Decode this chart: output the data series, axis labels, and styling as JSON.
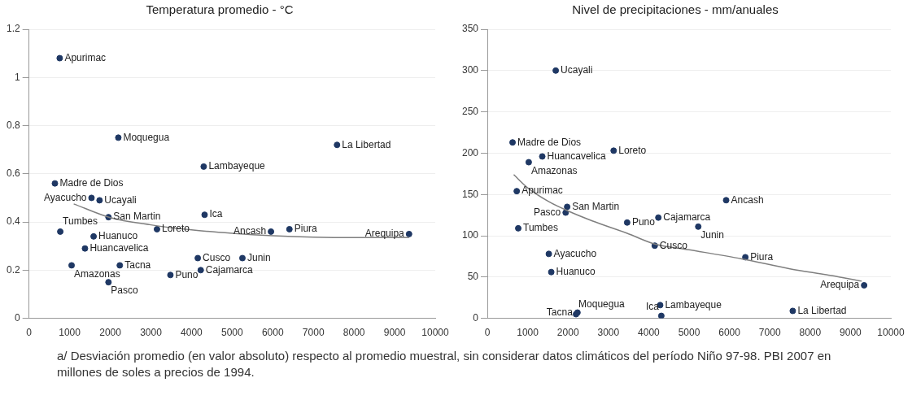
{
  "chart_data": [
    {
      "type": "scatter",
      "title": "Temperatura promedio - °C",
      "xlim": [
        0,
        10000
      ],
      "xticks": [
        0,
        1000,
        2000,
        3000,
        4000,
        5000,
        6000,
        7000,
        8000,
        9000,
        10000
      ],
      "ylim": [
        0,
        1.2
      ],
      "yticks": [
        0,
        0.2,
        0.4,
        0.6,
        0.8,
        1,
        1.2
      ],
      "grid": "y",
      "legend": false,
      "series": [
        {
          "marker": "circle",
          "color": "#1f3864",
          "x": [
            755,
            2198,
            7582,
            4300,
            637,
            1538,
            1736,
            1956,
            4322,
            5956,
            6410,
            9355,
            3150,
            769,
            1590,
            1377,
            4154,
            5253,
            1048,
            2234,
            4227,
            3480,
            1956
          ],
          "values": [
            1.08,
            0.75,
            0.72,
            0.63,
            0.56,
            0.5,
            0.49,
            0.42,
            0.43,
            0.36,
            0.37,
            0.35,
            0.37,
            0.36,
            0.34,
            0.29,
            0.25,
            0.25,
            0.22,
            0.22,
            0.2,
            0.18,
            0.15
          ]
        },
        {
          "type": "line",
          "marker": "none",
          "line_style": "solid",
          "color": "#7f7f7f",
          "x": [
            1100,
            2000,
            3000,
            4000,
            5000,
            6000,
            7000,
            8000,
            9355
          ],
          "values": [
            0.475,
            0.418,
            0.388,
            0.367,
            0.353,
            0.343,
            0.337,
            0.335,
            0.335
          ]
        }
      ],
      "annotations": [
        {
          "text": "Apurimac",
          "x": 755,
          "y": 1.08
        },
        {
          "text": "Moquegua",
          "x": 2198,
          "y": 0.75
        },
        {
          "text": "La Libertad",
          "x": 7582,
          "y": 0.72
        },
        {
          "text": "Lambayeque",
          "x": 4300,
          "y": 0.63
        },
        {
          "text": "Madre de Dios",
          "x": 637,
          "y": 0.56
        },
        {
          "text": "Ayacucho",
          "x": 1538,
          "y": 0.5
        },
        {
          "text": "Ucayali",
          "x": 1736,
          "y": 0.49
        },
        {
          "text": "San Martin",
          "x": 1956,
          "y": 0.42
        },
        {
          "text": "Ica",
          "x": 4322,
          "y": 0.43
        },
        {
          "text": "Ancash",
          "x": 5956,
          "y": 0.36
        },
        {
          "text": "Piura",
          "x": 6410,
          "y": 0.37
        },
        {
          "text": "Arequipa",
          "x": 9355,
          "y": 0.35
        },
        {
          "text": "Loreto",
          "x": 3150,
          "y": 0.37
        },
        {
          "text": "Tumbes",
          "x": 769,
          "y": 0.36
        },
        {
          "text": "Huanuco",
          "x": 1590,
          "y": 0.34
        },
        {
          "text": "Huancavelica",
          "x": 1377,
          "y": 0.29
        },
        {
          "text": "Cusco",
          "x": 4154,
          "y": 0.25
        },
        {
          "text": "Junin",
          "x": 5253,
          "y": 0.25
        },
        {
          "text": "Amazonas",
          "x": 1048,
          "y": 0.22
        },
        {
          "text": "Tacna",
          "x": 2234,
          "y": 0.22
        },
        {
          "text": "Cajamarca",
          "x": 4227,
          "y": 0.2
        },
        {
          "text": "Puno",
          "x": 3480,
          "y": 0.18
        },
        {
          "text": "Pasco",
          "x": 1956,
          "y": 0.15
        }
      ]
    },
    {
      "type": "scatter",
      "title": "Nivel de precipitaciones - mm/anuales",
      "xlim": [
        0,
        10000
      ],
      "xticks": [
        0,
        1000,
        2000,
        3000,
        4000,
        5000,
        6000,
        7000,
        8000,
        9000,
        10000
      ],
      "ylim": [
        0,
        350
      ],
      "yticks": [
        0,
        50,
        100,
        150,
        200,
        250,
        300,
        350
      ],
      "grid": "y",
      "legend": false,
      "series": [
        {
          "marker": "circle",
          "color": "#1f3864",
          "x": [
            1695,
            625,
            3130,
            1361,
            1026,
            729,
            1978,
            1941,
            766,
            3465,
            4238,
            5918,
            5227,
            4149,
            1524,
            1584,
            6394,
            9338,
            4283,
            4312,
            2198,
            2234,
            7569
          ],
          "values": [
            300,
            213,
            203,
            196,
            189,
            154,
            135,
            128,
            109,
            116,
            122,
            143,
            111,
            88,
            78,
            56,
            74,
            40,
            16,
            3,
            5,
            7,
            9
          ]
        },
        {
          "type": "line",
          "marker": "none",
          "line_style": "solid",
          "color": "#7f7f7f",
          "x": [
            654,
            1000,
            1500,
            2000,
            2600,
            3465,
            4149,
            5000,
            6305,
            7500,
            8500,
            9279
          ],
          "values": [
            174,
            158,
            142,
            130,
            118,
            103,
            90,
            83,
            72,
            60,
            52,
            45
          ]
        }
      ],
      "annotations": [
        {
          "text": "Ucayali",
          "x": 1695,
          "y": 300
        },
        {
          "text": "Madre de Dios",
          "x": 625,
          "y": 213
        },
        {
          "text": "Loreto",
          "x": 3130,
          "y": 203
        },
        {
          "text": "Huancavelica",
          "x": 1361,
          "y": 196
        },
        {
          "text": "Amazonas",
          "x": 1026,
          "y": 189
        },
        {
          "text": "Apurimac",
          "x": 729,
          "y": 154
        },
        {
          "text": "San Martin",
          "x": 1978,
          "y": 135
        },
        {
          "text": "Pasco",
          "x": 1941,
          "y": 128
        },
        {
          "text": "Tumbes",
          "x": 766,
          "y": 109
        },
        {
          "text": "Puno",
          "x": 3465,
          "y": 116
        },
        {
          "text": "Cajamarca",
          "x": 4238,
          "y": 122
        },
        {
          "text": "Ancash",
          "x": 5918,
          "y": 143
        },
        {
          "text": "Junin",
          "x": 5227,
          "y": 111
        },
        {
          "text": "Cusco",
          "x": 4149,
          "y": 88
        },
        {
          "text": "Ayacucho",
          "x": 1524,
          "y": 78
        },
        {
          "text": "Huanuco",
          "x": 1584,
          "y": 56
        },
        {
          "text": "Piura",
          "x": 6394,
          "y": 74
        },
        {
          "text": "Arequipa",
          "x": 9338,
          "y": 40
        },
        {
          "text": "Lambayeque",
          "x": 4283,
          "y": 16
        },
        {
          "text": "Ica",
          "x": 4312,
          "y": 3
        },
        {
          "text": "Moquegua",
          "x": 2198,
          "y": 5
        },
        {
          "text": "Tacna",
          "x": 2234,
          "y": 7
        },
        {
          "text": "La Libertad",
          "x": 7569,
          "y": 9
        },
        "a/ Desviación promedio (en valor absoluto) respecto al promedio muestral, sin considerar datos climáticos del período Niño 97-98. PBI 2007 en millones de soles a precios de 1994."
      ]
    }
  ]
}
